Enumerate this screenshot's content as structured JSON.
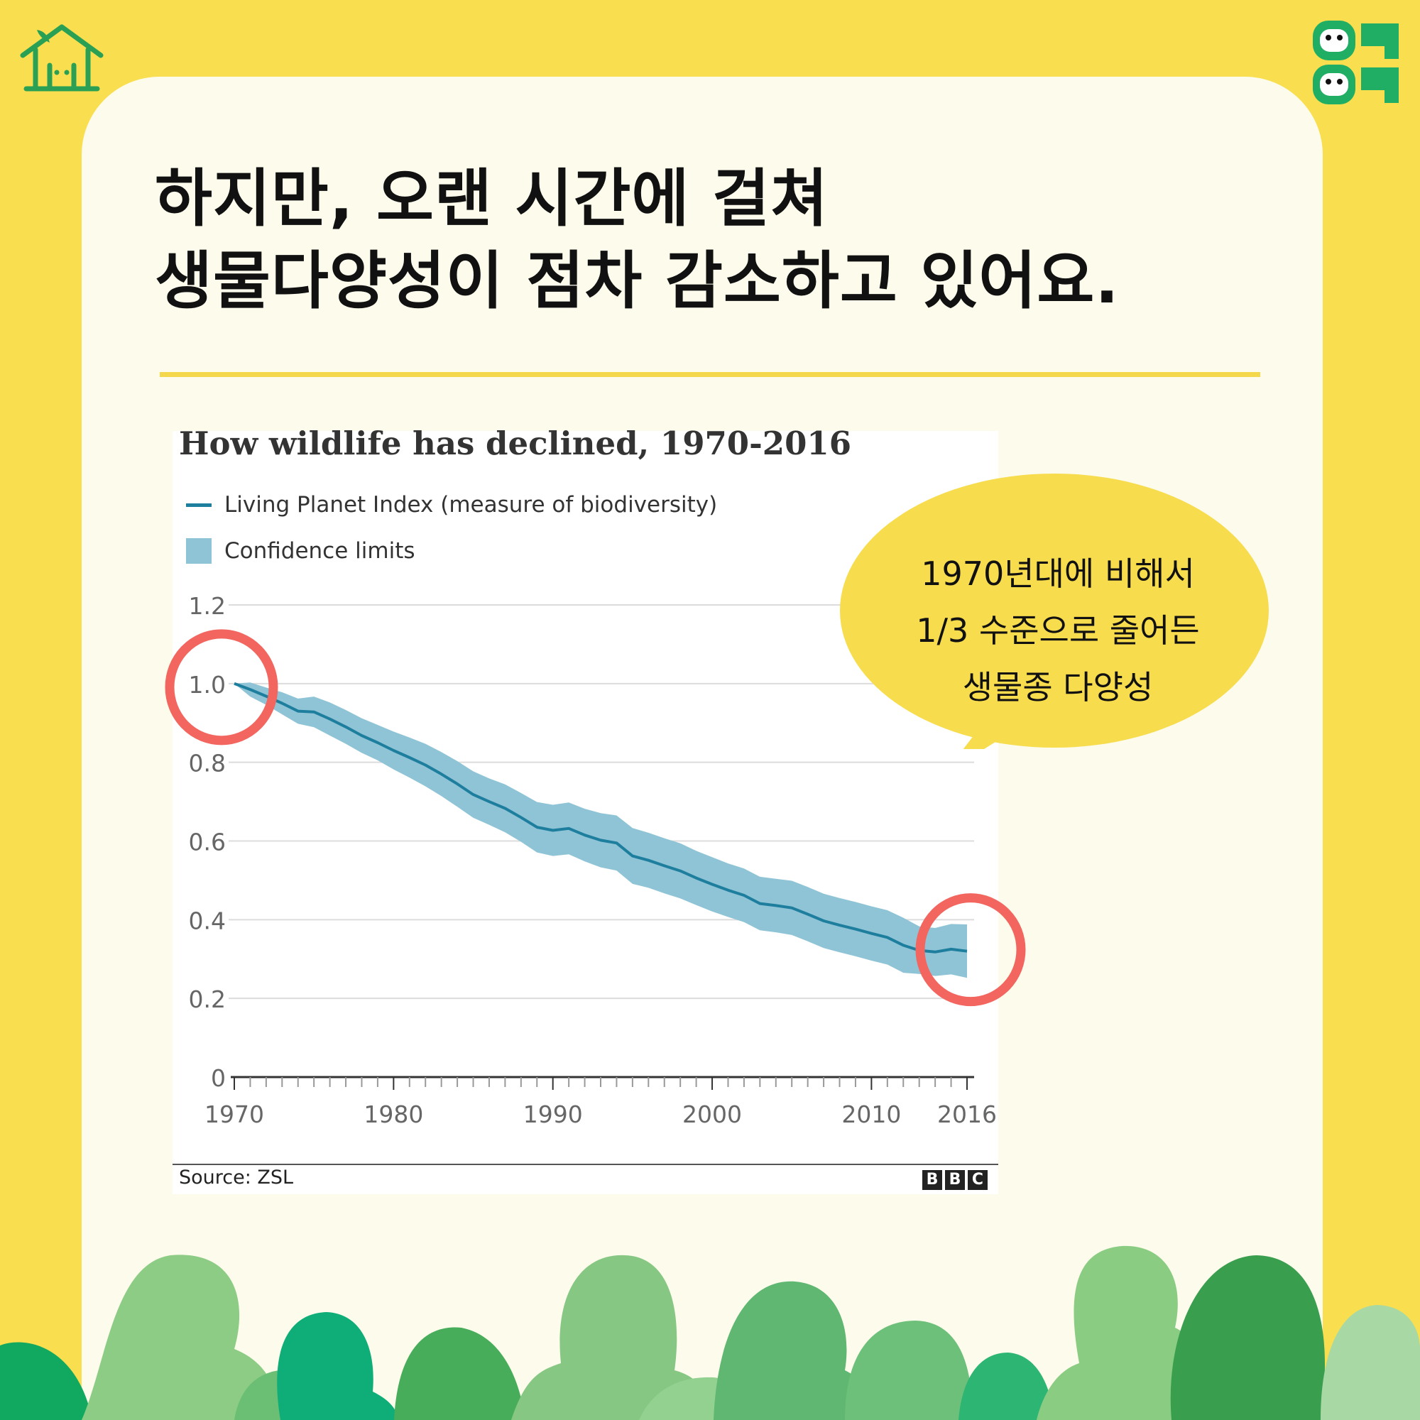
{
  "headline": {
    "line1": "하지만, 오랜 시간에 걸쳐",
    "line2": "생물다양성이 점차 감소하고 있어요."
  },
  "brand": {
    "left_logo": "house-sprout-logo",
    "right_logo": "green-character-logo"
  },
  "callout": {
    "line1": "1970년대에 비해서",
    "line2": "1/3 수준으로 줄어든",
    "line3": "생물종 다양성"
  },
  "chart_data": {
    "type": "line",
    "title": "How wildlife has declined, 1970-2016",
    "source": "Source: ZSL",
    "publisher": "BBC",
    "x": [
      1970,
      1971,
      1972,
      1973,
      1974,
      1975,
      1976,
      1977,
      1978,
      1979,
      1980,
      1981,
      1982,
      1983,
      1984,
      1985,
      1986,
      1987,
      1988,
      1989,
      1990,
      1991,
      1992,
      1993,
      1994,
      1995,
      1996,
      1997,
      1998,
      1999,
      2000,
      2001,
      2002,
      2003,
      2004,
      2005,
      2006,
      2007,
      2008,
      2009,
      2010,
      2011,
      2012,
      2013,
      2014,
      2015,
      2016
    ],
    "series": [
      {
        "name": "Living Planet Index (measure of biodiversity)",
        "color": "#1e7e9e",
        "values": [
          1.0,
          0.985,
          0.968,
          0.95,
          0.93,
          0.928,
          0.91,
          0.89,
          0.868,
          0.85,
          0.83,
          0.812,
          0.793,
          0.77,
          0.745,
          0.718,
          0.7,
          0.683,
          0.66,
          0.635,
          0.627,
          0.632,
          0.615,
          0.602,
          0.595,
          0.562,
          0.551,
          0.537,
          0.524,
          0.506,
          0.49,
          0.475,
          0.462,
          0.441,
          0.436,
          0.43,
          0.414,
          0.397,
          0.386,
          0.376,
          0.365,
          0.355,
          0.335,
          0.322,
          0.318,
          0.325,
          0.32
        ]
      }
    ],
    "band": {
      "name": "Confidence limits",
      "color": "#8fc4d6",
      "upper": [
        1.0,
        1.003,
        0.99,
        0.978,
        0.962,
        0.967,
        0.952,
        0.933,
        0.912,
        0.895,
        0.878,
        0.863,
        0.847,
        0.826,
        0.803,
        0.777,
        0.759,
        0.744,
        0.722,
        0.699,
        0.692,
        0.698,
        0.682,
        0.671,
        0.665,
        0.633,
        0.621,
        0.607,
        0.594,
        0.575,
        0.559,
        0.543,
        0.53,
        0.509,
        0.504,
        0.499,
        0.483,
        0.466,
        0.455,
        0.445,
        0.434,
        0.424,
        0.405,
        0.383,
        0.379,
        0.389,
        0.388
      ],
      "lower": [
        1.0,
        0.967,
        0.946,
        0.922,
        0.898,
        0.889,
        0.868,
        0.847,
        0.824,
        0.805,
        0.782,
        0.761,
        0.739,
        0.714,
        0.687,
        0.659,
        0.641,
        0.622,
        0.598,
        0.571,
        0.562,
        0.566,
        0.548,
        0.533,
        0.525,
        0.491,
        0.481,
        0.467,
        0.454,
        0.437,
        0.421,
        0.407,
        0.394,
        0.373,
        0.368,
        0.361,
        0.345,
        0.328,
        0.317,
        0.307,
        0.296,
        0.286,
        0.265,
        0.262,
        0.257,
        0.261,
        0.252
      ]
    },
    "ylim": [
      0,
      1.2
    ],
    "yticks": [
      "0",
      "0.2",
      "0.4",
      "0.6",
      "0.8",
      "1.0",
      "1.2"
    ],
    "ytick_values": [
      0,
      0.2,
      0.4,
      0.6,
      0.8,
      1.0,
      1.2
    ],
    "xticks": [
      "1970",
      "1980",
      "1990",
      "2000",
      "2010",
      "2016"
    ],
    "xtick_values": [
      1970,
      1980,
      1990,
      2000,
      2010,
      2016
    ],
    "xlim": [
      1970,
      2016
    ],
    "grid": true,
    "legend": "top-left",
    "highlights": [
      {
        "label": "start-circle",
        "x": 1970,
        "y": 1.0,
        "color": "#f2665f"
      },
      {
        "label": "end-circle",
        "x": 2016,
        "y": 0.32,
        "color": "#f2665f"
      }
    ]
  }
}
